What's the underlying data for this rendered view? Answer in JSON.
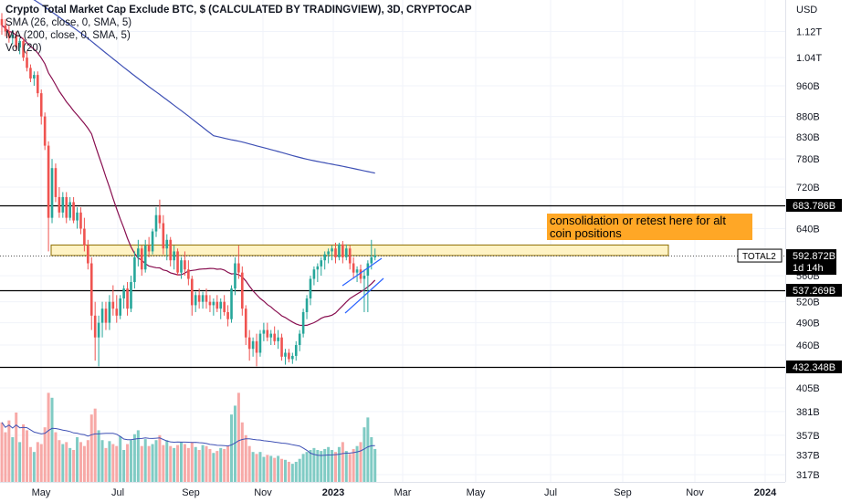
{
  "chart_title": "Crypto Total Market Cap Exclude BTC, $ (CALCULATED BY TRADINGVIEW), 3D, CRYPTOCAP",
  "indicators": {
    "sma26": "SMA (26, close, 0, SMA, 5)",
    "ma200": "MA (200, close, 0, SMA, 5)",
    "vol": "Vol (20)"
  },
  "annotation": "consolidation or retest here for alt coin positions",
  "colors": {
    "up": "#26a69a",
    "down": "#ef5350",
    "vol_up": "#80cbc4",
    "vol_down": "#f7a9a7",
    "sma26": "#880e4f",
    "ma200": "#3f51b5",
    "vol_ma": "#3f51b5",
    "zone": "#fff3c4",
    "annotation": "#ffa726"
  },
  "chart_data": {
    "type": "candlestick",
    "title": "Crypto Total Market Cap Exclude BTC, $ (CALCULATED BY TRADINGVIEW), 3D, CRYPTOCAP",
    "yaxis_currency": "USD",
    "y_scale": "log",
    "y_ticks": [
      "1.12T",
      "1.04T",
      "960B",
      "880B",
      "830B",
      "780B",
      "720B",
      "640B",
      "560B",
      "520B",
      "490B",
      "460B",
      "405B",
      "381B",
      "357B",
      "337B",
      "317B"
    ],
    "x_ticks": [
      "May",
      "Jul",
      "Sep",
      "Nov",
      "2023",
      "Mar",
      "May",
      "Jul",
      "Sep",
      "Nov",
      "2024"
    ],
    "horizontal_levels": [
      {
        "label": "683.786B",
        "value": 683.786
      },
      {
        "label": "537.269B",
        "value": 537.269
      },
      {
        "label": "432.348B",
        "value": 432.348
      }
    ],
    "consolidation_zone": {
      "low": 593,
      "high": 611
    },
    "current_price": {
      "symbol": "TOTAL2",
      "label": "592.872B",
      "value": 592.872,
      "countdown": "1d 14h"
    },
    "candles": [
      {
        "o": 1160,
        "h": 1180,
        "l": 1110,
        "c": 1140
      },
      {
        "o": 1140,
        "h": 1160,
        "l": 1105,
        "c": 1120
      },
      {
        "o": 1120,
        "h": 1140,
        "l": 1085,
        "c": 1100
      },
      {
        "o": 1100,
        "h": 1125,
        "l": 1080,
        "c": 1110
      },
      {
        "o": 1110,
        "h": 1120,
        "l": 1060,
        "c": 1070
      },
      {
        "o": 1070,
        "h": 1100,
        "l": 1050,
        "c": 1090
      },
      {
        "o": 1090,
        "h": 1100,
        "l": 1030,
        "c": 1040
      },
      {
        "o": 1040,
        "h": 1060,
        "l": 1000,
        "c": 1010
      },
      {
        "o": 1010,
        "h": 1020,
        "l": 970,
        "c": 980
      },
      {
        "o": 980,
        "h": 1000,
        "l": 960,
        "c": 990
      },
      {
        "o": 990,
        "h": 1000,
        "l": 930,
        "c": 940
      },
      {
        "o": 940,
        "h": 950,
        "l": 860,
        "c": 880
      },
      {
        "o": 880,
        "h": 890,
        "l": 800,
        "c": 810
      },
      {
        "o": 810,
        "h": 820,
        "l": 600,
        "c": 660
      },
      {
        "o": 660,
        "h": 780,
        "l": 650,
        "c": 760
      },
      {
        "o": 760,
        "h": 770,
        "l": 690,
        "c": 700
      },
      {
        "o": 700,
        "h": 720,
        "l": 660,
        "c": 670
      },
      {
        "o": 670,
        "h": 710,
        "l": 660,
        "c": 700
      },
      {
        "o": 700,
        "h": 710,
        "l": 650,
        "c": 660
      },
      {
        "o": 660,
        "h": 700,
        "l": 655,
        "c": 690
      },
      {
        "o": 690,
        "h": 700,
        "l": 650,
        "c": 655
      },
      {
        "o": 655,
        "h": 680,
        "l": 640,
        "c": 670
      },
      {
        "o": 670,
        "h": 680,
        "l": 630,
        "c": 640
      },
      {
        "o": 640,
        "h": 660,
        "l": 600,
        "c": 610
      },
      {
        "o": 610,
        "h": 620,
        "l": 570,
        "c": 580
      },
      {
        "o": 580,
        "h": 590,
        "l": 480,
        "c": 500
      },
      {
        "o": 500,
        "h": 520,
        "l": 440,
        "c": 470
      },
      {
        "o": 470,
        "h": 500,
        "l": 433,
        "c": 490
      },
      {
        "o": 490,
        "h": 520,
        "l": 470,
        "c": 510
      },
      {
        "o": 510,
        "h": 520,
        "l": 480,
        "c": 490
      },
      {
        "o": 490,
        "h": 530,
        "l": 480,
        "c": 520
      },
      {
        "o": 520,
        "h": 545,
        "l": 500,
        "c": 510
      },
      {
        "o": 510,
        "h": 530,
        "l": 490,
        "c": 500
      },
      {
        "o": 500,
        "h": 530,
        "l": 495,
        "c": 525
      },
      {
        "o": 525,
        "h": 545,
        "l": 510,
        "c": 540
      },
      {
        "o": 540,
        "h": 550,
        "l": 500,
        "c": 510
      },
      {
        "o": 510,
        "h": 560,
        "l": 505,
        "c": 550
      },
      {
        "o": 550,
        "h": 600,
        "l": 540,
        "c": 590
      },
      {
        "o": 590,
        "h": 620,
        "l": 575,
        "c": 605
      },
      {
        "o": 605,
        "h": 610,
        "l": 560,
        "c": 570
      },
      {
        "o": 570,
        "h": 620,
        "l": 565,
        "c": 610
      },
      {
        "o": 610,
        "h": 625,
        "l": 590,
        "c": 600
      },
      {
        "o": 600,
        "h": 640,
        "l": 595,
        "c": 635
      },
      {
        "o": 635,
        "h": 680,
        "l": 625,
        "c": 665
      },
      {
        "o": 665,
        "h": 695,
        "l": 640,
        "c": 650
      },
      {
        "o": 650,
        "h": 665,
        "l": 595,
        "c": 605
      },
      {
        "o": 605,
        "h": 630,
        "l": 585,
        "c": 620
      },
      {
        "o": 620,
        "h": 625,
        "l": 575,
        "c": 585
      },
      {
        "o": 585,
        "h": 610,
        "l": 570,
        "c": 600
      },
      {
        "o": 600,
        "h": 605,
        "l": 560,
        "c": 565
      },
      {
        "o": 565,
        "h": 590,
        "l": 555,
        "c": 585
      },
      {
        "o": 585,
        "h": 600,
        "l": 560,
        "c": 570
      },
      {
        "o": 570,
        "h": 585,
        "l": 545,
        "c": 555
      },
      {
        "o": 555,
        "h": 560,
        "l": 500,
        "c": 515
      },
      {
        "o": 515,
        "h": 535,
        "l": 505,
        "c": 530
      },
      {
        "o": 530,
        "h": 540,
        "l": 510,
        "c": 520
      },
      {
        "o": 520,
        "h": 535,
        "l": 510,
        "c": 530
      },
      {
        "o": 530,
        "h": 540,
        "l": 510,
        "c": 520
      },
      {
        "o": 520,
        "h": 530,
        "l": 505,
        "c": 515
      },
      {
        "o": 515,
        "h": 525,
        "l": 500,
        "c": 520
      },
      {
        "o": 520,
        "h": 530,
        "l": 505,
        "c": 510
      },
      {
        "o": 510,
        "h": 525,
        "l": 495,
        "c": 520
      },
      {
        "o": 520,
        "h": 530,
        "l": 500,
        "c": 505
      },
      {
        "o": 505,
        "h": 515,
        "l": 485,
        "c": 495
      },
      {
        "o": 495,
        "h": 545,
        "l": 490,
        "c": 540
      },
      {
        "o": 540,
        "h": 590,
        "l": 530,
        "c": 580
      },
      {
        "o": 580,
        "h": 610,
        "l": 555,
        "c": 565
      },
      {
        "o": 565,
        "h": 575,
        "l": 500,
        "c": 510
      },
      {
        "o": 510,
        "h": 515,
        "l": 460,
        "c": 470
      },
      {
        "o": 470,
        "h": 480,
        "l": 440,
        "c": 455
      },
      {
        "o": 455,
        "h": 470,
        "l": 445,
        "c": 465
      },
      {
        "o": 465,
        "h": 475,
        "l": 433,
        "c": 450
      },
      {
        "o": 450,
        "h": 480,
        "l": 445,
        "c": 475
      },
      {
        "o": 475,
        "h": 490,
        "l": 465,
        "c": 480
      },
      {
        "o": 480,
        "h": 490,
        "l": 465,
        "c": 470
      },
      {
        "o": 470,
        "h": 480,
        "l": 460,
        "c": 475
      },
      {
        "o": 475,
        "h": 485,
        "l": 460,
        "c": 465
      },
      {
        "o": 465,
        "h": 480,
        "l": 455,
        "c": 470
      },
      {
        "o": 470,
        "h": 475,
        "l": 440,
        "c": 445
      },
      {
        "o": 445,
        "h": 455,
        "l": 435,
        "c": 450
      },
      {
        "o": 450,
        "h": 455,
        "l": 438,
        "c": 442
      },
      {
        "o": 442,
        "h": 450,
        "l": 436,
        "c": 446
      },
      {
        "o": 446,
        "h": 465,
        "l": 440,
        "c": 460
      },
      {
        "o": 460,
        "h": 480,
        "l": 452,
        "c": 475
      },
      {
        "o": 475,
        "h": 510,
        "l": 470,
        "c": 505
      },
      {
        "o": 505,
        "h": 530,
        "l": 495,
        "c": 525
      },
      {
        "o": 525,
        "h": 560,
        "l": 515,
        "c": 555
      },
      {
        "o": 555,
        "h": 575,
        "l": 545,
        "c": 570
      },
      {
        "o": 570,
        "h": 580,
        "l": 550,
        "c": 575
      },
      {
        "o": 575,
        "h": 590,
        "l": 560,
        "c": 585
      },
      {
        "o": 585,
        "h": 600,
        "l": 570,
        "c": 595
      },
      {
        "o": 595,
        "h": 605,
        "l": 580,
        "c": 600
      },
      {
        "o": 600,
        "h": 610,
        "l": 585,
        "c": 605
      },
      {
        "o": 605,
        "h": 615,
        "l": 580,
        "c": 590
      },
      {
        "o": 590,
        "h": 615,
        "l": 585,
        "c": 612
      },
      {
        "o": 612,
        "h": 618,
        "l": 580,
        "c": 590
      },
      {
        "o": 590,
        "h": 612,
        "l": 585,
        "c": 605
      },
      {
        "o": 605,
        "h": 610,
        "l": 570,
        "c": 580
      },
      {
        "o": 580,
        "h": 590,
        "l": 555,
        "c": 565
      },
      {
        "o": 565,
        "h": 575,
        "l": 550,
        "c": 570
      },
      {
        "o": 570,
        "h": 578,
        "l": 548,
        "c": 555
      },
      {
        "o": 555,
        "h": 570,
        "l": 505,
        "c": 560
      },
      {
        "o": 560,
        "h": 585,
        "l": 505,
        "c": 580
      },
      {
        "o": 580,
        "h": 620,
        "l": 570,
        "c": 590
      },
      {
        "o": 590,
        "h": 605,
        "l": 585,
        "c": 593
      }
    ],
    "volume_billions": [
      370,
      360,
      372,
      355,
      380,
      350,
      368,
      362,
      345,
      340,
      350,
      348,
      365,
      400,
      395,
      360,
      352,
      348,
      350,
      344,
      342,
      355,
      350,
      346,
      352,
      378,
      384,
      362,
      352,
      344,
      351,
      348,
      346,
      356,
      342,
      348,
      352,
      358,
      362,
      346,
      353,
      346,
      348,
      352,
      357,
      347,
      352,
      346,
      344,
      347,
      350,
      348,
      344,
      350,
      345,
      342,
      347,
      346,
      343,
      339,
      341,
      344,
      343,
      346,
      378,
      387,
      400,
      370,
      357,
      346,
      340,
      338,
      340,
      335,
      337,
      336,
      334,
      336,
      333,
      332,
      330,
      328,
      330,
      333,
      338,
      340,
      342,
      344,
      342,
      341,
      343,
      345,
      342,
      340,
      345,
      350,
      341,
      338,
      343,
      346,
      350,
      365,
      375,
      355,
      343
    ]
  }
}
